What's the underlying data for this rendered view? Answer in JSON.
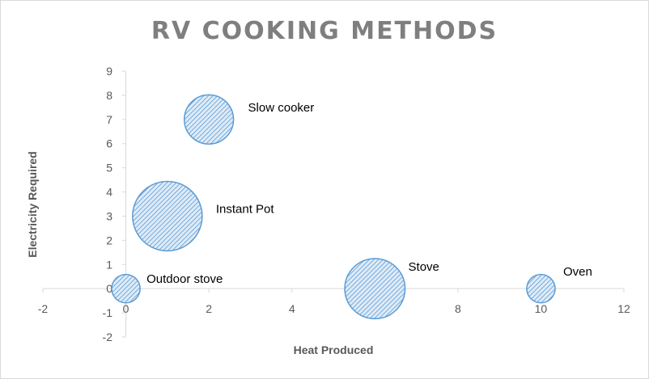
{
  "chart_data": {
    "type": "bubble",
    "title": "RV COOKING METHODS",
    "xlabel": "Heat Produced",
    "ylabel": "Electricity Required",
    "xlim": [
      -2,
      12
    ],
    "ylim": [
      -2,
      9
    ],
    "x_ticks": [
      "-2",
      "0",
      "2",
      "4",
      "6",
      "8",
      "10",
      "12"
    ],
    "y_ticks": [
      "-2",
      "-1",
      "0",
      "1",
      "2",
      "3",
      "4",
      "5",
      "6",
      "7",
      "8",
      "9"
    ],
    "grid": false,
    "legend": "none",
    "points": [
      {
        "label": "Slow cooker",
        "x": 2,
        "y": 7,
        "size": 3
      },
      {
        "label": "Instant Pot",
        "x": 1,
        "y": 3,
        "size": 6
      },
      {
        "label": "Outdoor stove",
        "x": 0,
        "y": 0,
        "size": 1
      },
      {
        "label": "Stove",
        "x": 6,
        "y": 0,
        "size": 4.5
      },
      {
        "label": "Oven",
        "x": 10,
        "y": 0,
        "size": 1
      }
    ],
    "colors": {
      "bubble_fill": "#deebf7",
      "bubble_hatch": "#5b9bd5",
      "bubble_stroke": "#5b9bd5",
      "axis": "#d9d9d9"
    }
  }
}
